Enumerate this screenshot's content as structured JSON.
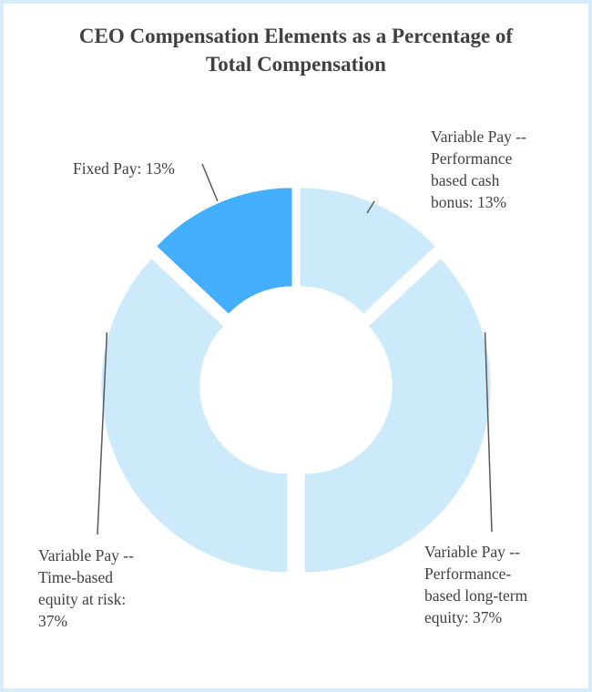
{
  "chart_data": {
    "type": "pie",
    "variant": "donut",
    "title_lines": [
      "CEO Compensation Elements as a Percentage of",
      "Total Compensation"
    ],
    "slices": [
      {
        "name": "Variable Pay -- Performance based cash bonus",
        "value": 13,
        "color": "#cdeafb",
        "label_lines": [
          "Variable Pay --",
          "Performance",
          "based cash",
          "bonus: 13%"
        ]
      },
      {
        "name": "Variable Pay -- Performance-based long-term equity",
        "value": 37,
        "color": "#cdeafb",
        "label_lines": [
          "Variable Pay --",
          "Performance-",
          "based long-term",
          "equity: 37%"
        ]
      },
      {
        "name": "Variable Pay -- Time-based equity at risk",
        "value": 37,
        "color": "#cdeafb",
        "label_lines": [
          "Variable Pay --",
          "Time-based",
          "equity at risk:",
          "37%"
        ]
      },
      {
        "name": "Fixed Pay",
        "value": 13,
        "color": "#42aefc",
        "label_lines": [
          "Fixed Pay: 13%"
        ]
      }
    ],
    "start": "top",
    "direction": "clockwise",
    "exploded": true,
    "label_color": "#404040",
    "border_color": "#d6ecf8"
  }
}
